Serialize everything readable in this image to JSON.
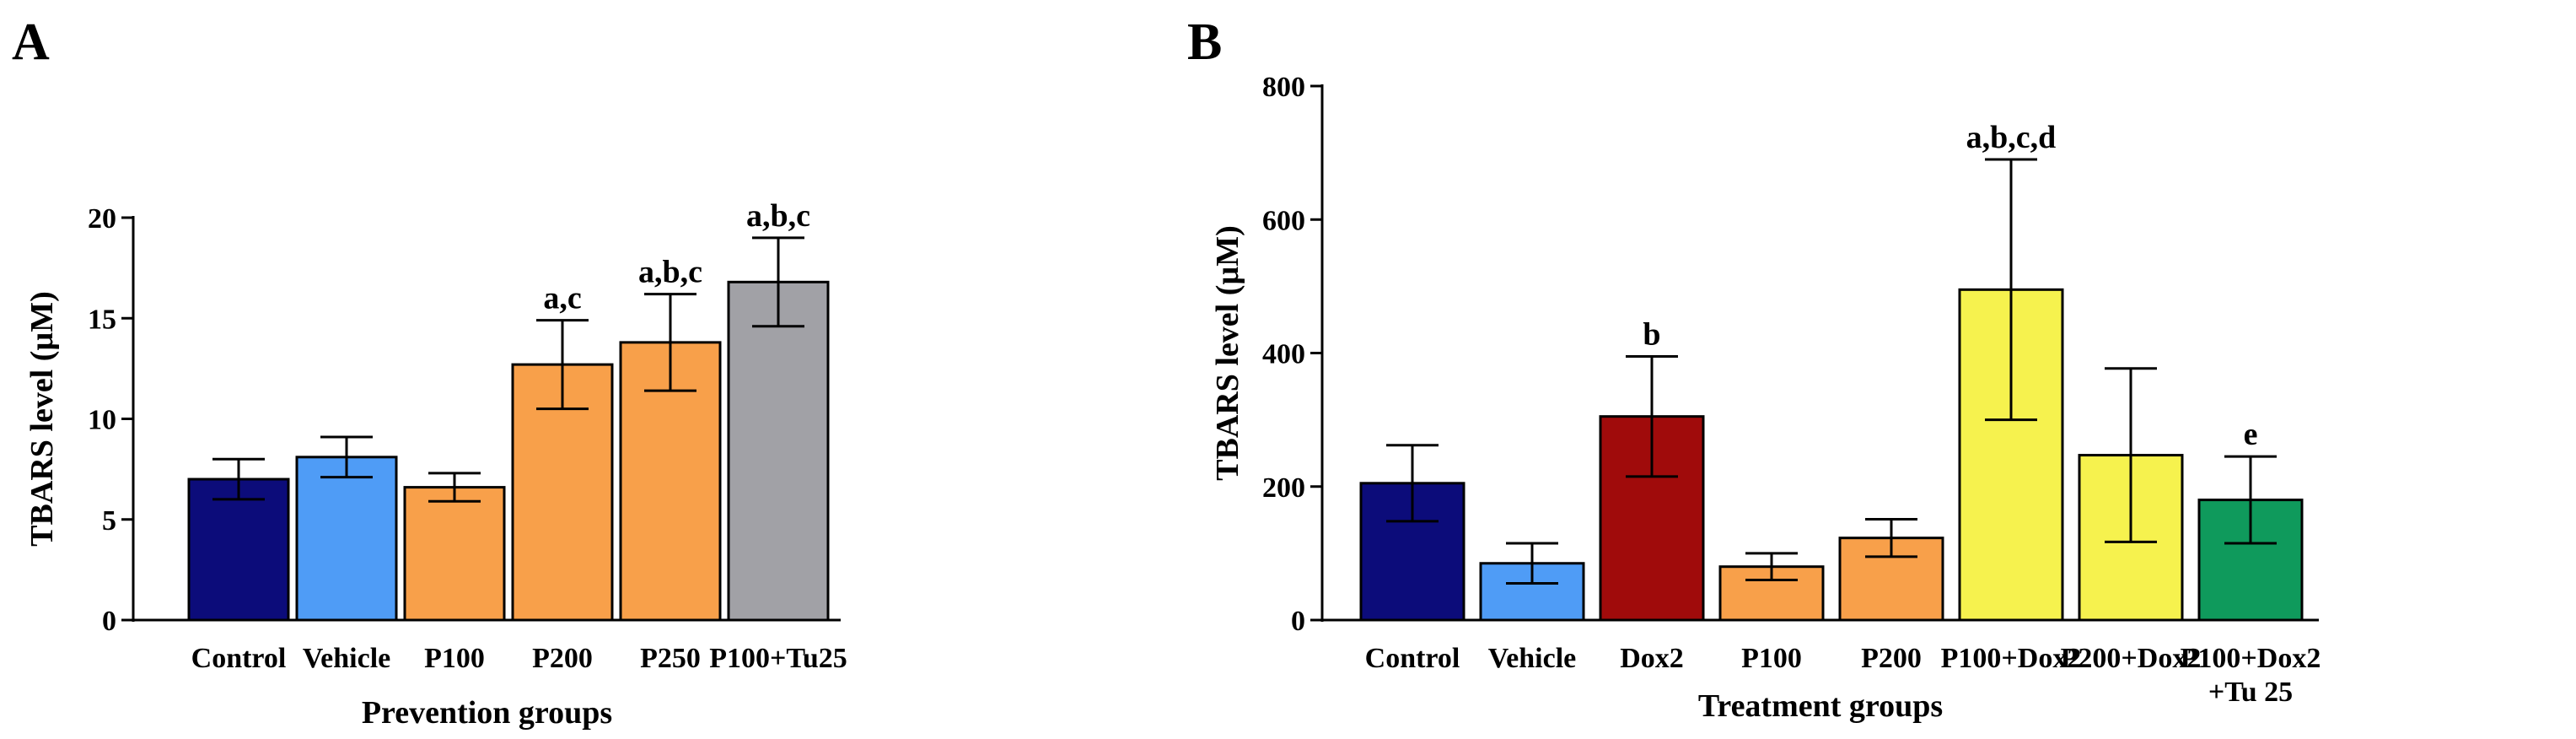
{
  "chart_data": [
    {
      "type": "bar",
      "panel": "A",
      "title": "",
      "xlabel": "Prevention groups",
      "ylabel": "TBARS level (µM)",
      "ylim": [
        0,
        20
      ],
      "yticks": [
        0,
        5,
        10,
        15,
        20
      ],
      "categories": [
        "Control",
        "Vehicle",
        "P100",
        "P200",
        "P250",
        "P100+Tu25"
      ],
      "values": [
        7.0,
        8.1,
        6.6,
        12.7,
        13.8,
        16.8
      ],
      "errors": [
        1.0,
        1.0,
        0.7,
        2.2,
        2.4,
        2.2
      ],
      "colors": [
        "#0c0c7a",
        "#4f9cf6",
        "#f8a04a",
        "#f8a04a",
        "#f8a04a",
        "#a1a1a6"
      ],
      "annotations": [
        "",
        "",
        "",
        "a,c",
        "a,b,c",
        "a,b,c"
      ]
    },
    {
      "type": "bar",
      "panel": "B",
      "title": "",
      "xlabel": "Treatment groups",
      "ylabel": "TBARS level (µM)",
      "ylim": [
        0,
        800
      ],
      "yticks": [
        0,
        200,
        400,
        600,
        800
      ],
      "categories": [
        "Control",
        "Vehicle",
        "Dox2",
        "P100",
        "P200",
        "P100+Dox2",
        "P200+Dox2",
        "P100+Dox2\n+Tu 25"
      ],
      "values": [
        205,
        85,
        305,
        80,
        123,
        495,
        247,
        180
      ],
      "errors": [
        57,
        30,
        90,
        20,
        28,
        195,
        130,
        65
      ],
      "colors": [
        "#0c0c7a",
        "#4f9cf6",
        "#a00b0b",
        "#f8a04a",
        "#f8a04a",
        "#f6f24e",
        "#f6f24e",
        "#0f9a5c"
      ],
      "annotations": [
        "",
        "",
        "b",
        "",
        "",
        "a,b,c,d",
        "",
        "e"
      ]
    }
  ]
}
